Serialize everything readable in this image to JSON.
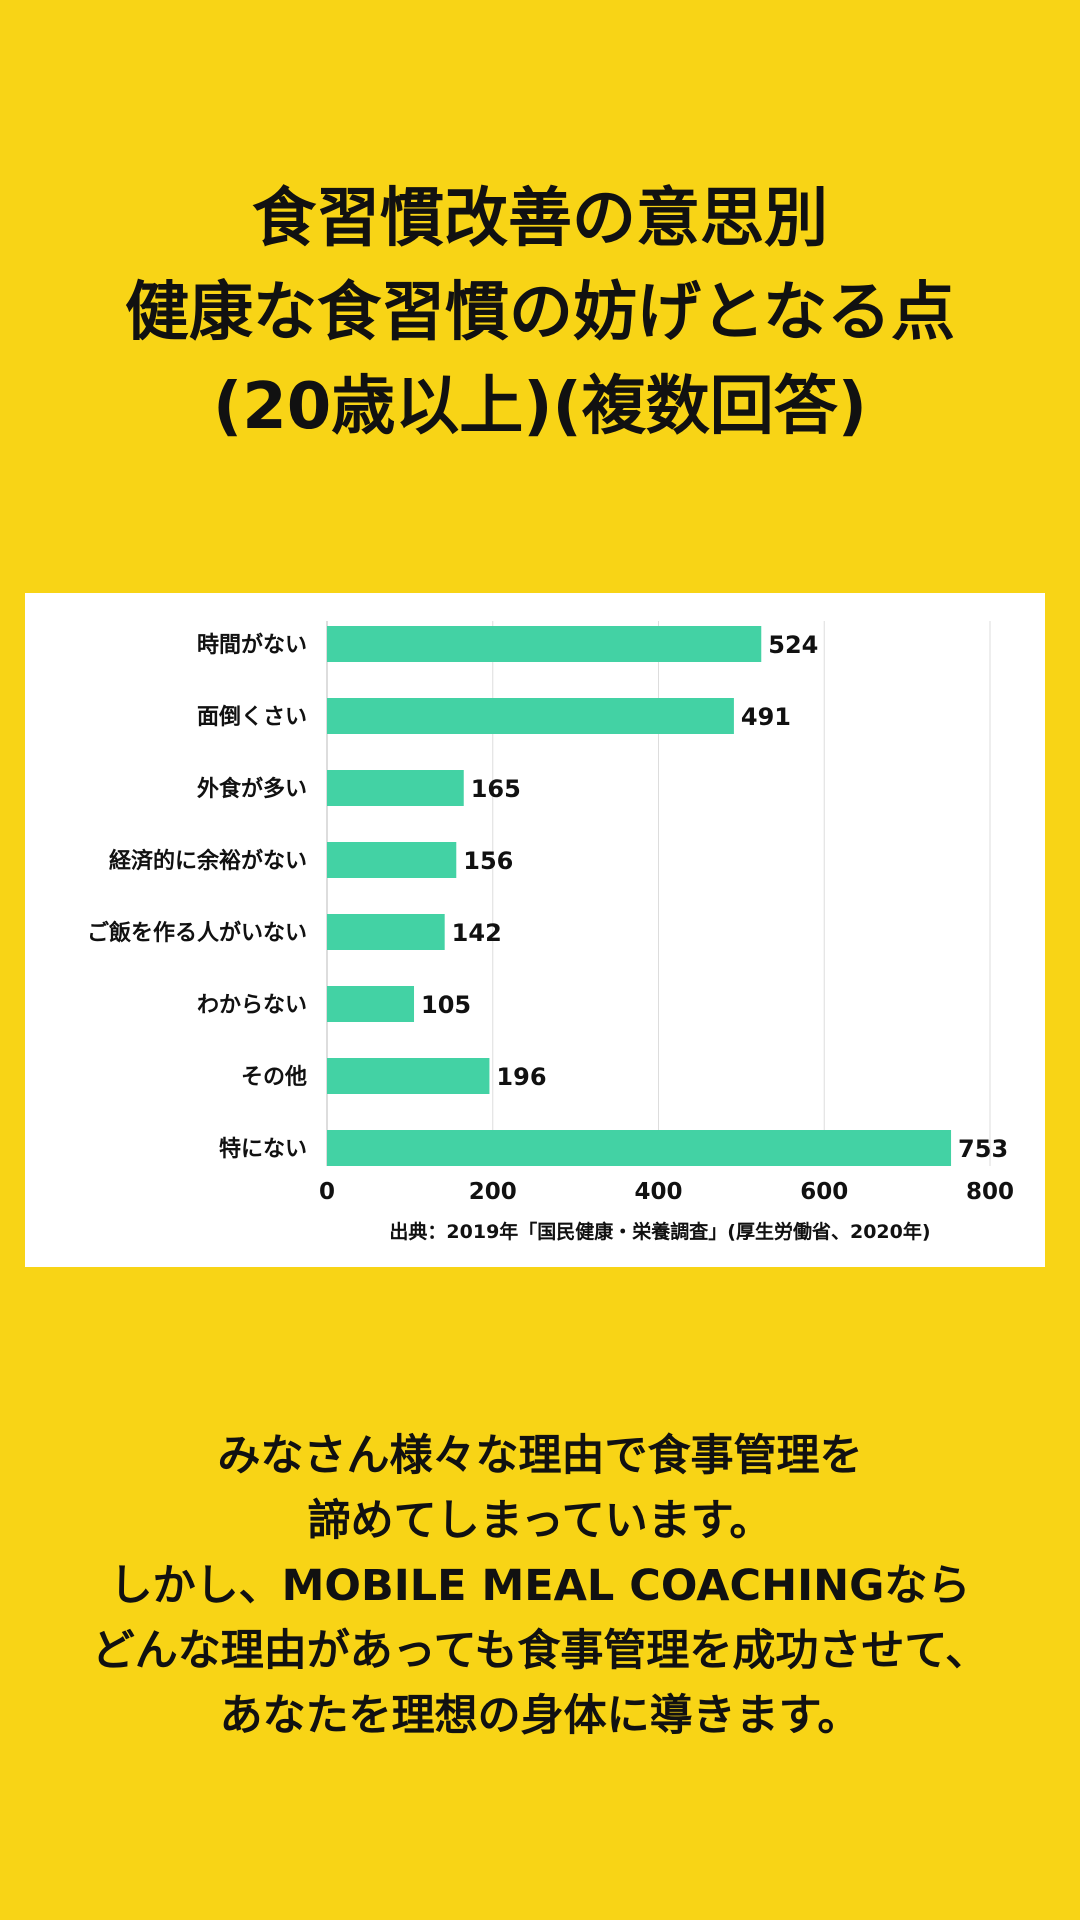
{
  "title_lines": [
    "食習慣改善の意思別",
    "健康な食習慣の妨げとなる点",
    "(20歳以上)(複数回答)"
  ],
  "chart_data": {
    "type": "bar",
    "orientation": "horizontal",
    "categories": [
      "時間がない",
      "面倒くさい",
      "外食が多い",
      "経済的に余裕がない",
      "ご飯を作る人がいない",
      "わからない",
      "その他",
      "特にない"
    ],
    "values": [
      524,
      491,
      165,
      156,
      142,
      105,
      196,
      753
    ],
    "xlim": [
      0,
      800
    ],
    "xticks": [
      "0",
      "200",
      "400",
      "600",
      "800"
    ],
    "grid": true,
    "data_labels": true,
    "bar_color": "#43D2A4",
    "source": "出典：2019年「国民健康・栄養調査」(厚生労働省、2020年)"
  },
  "message_lines": [
    "みなさん様々な理由で食事管理を",
    "諦めてしまっています。",
    "しかし、MOBILE MEAL COACHINGなら",
    "どんな理由があっても食事管理を成功させて、",
    "あなたを理想の身体に導きます。"
  ],
  "colors": {
    "background": "#F8D416",
    "card": "#FFFFFF",
    "bar": "#43D2A4",
    "grid": "#DDDDDD",
    "text": "#111111"
  }
}
